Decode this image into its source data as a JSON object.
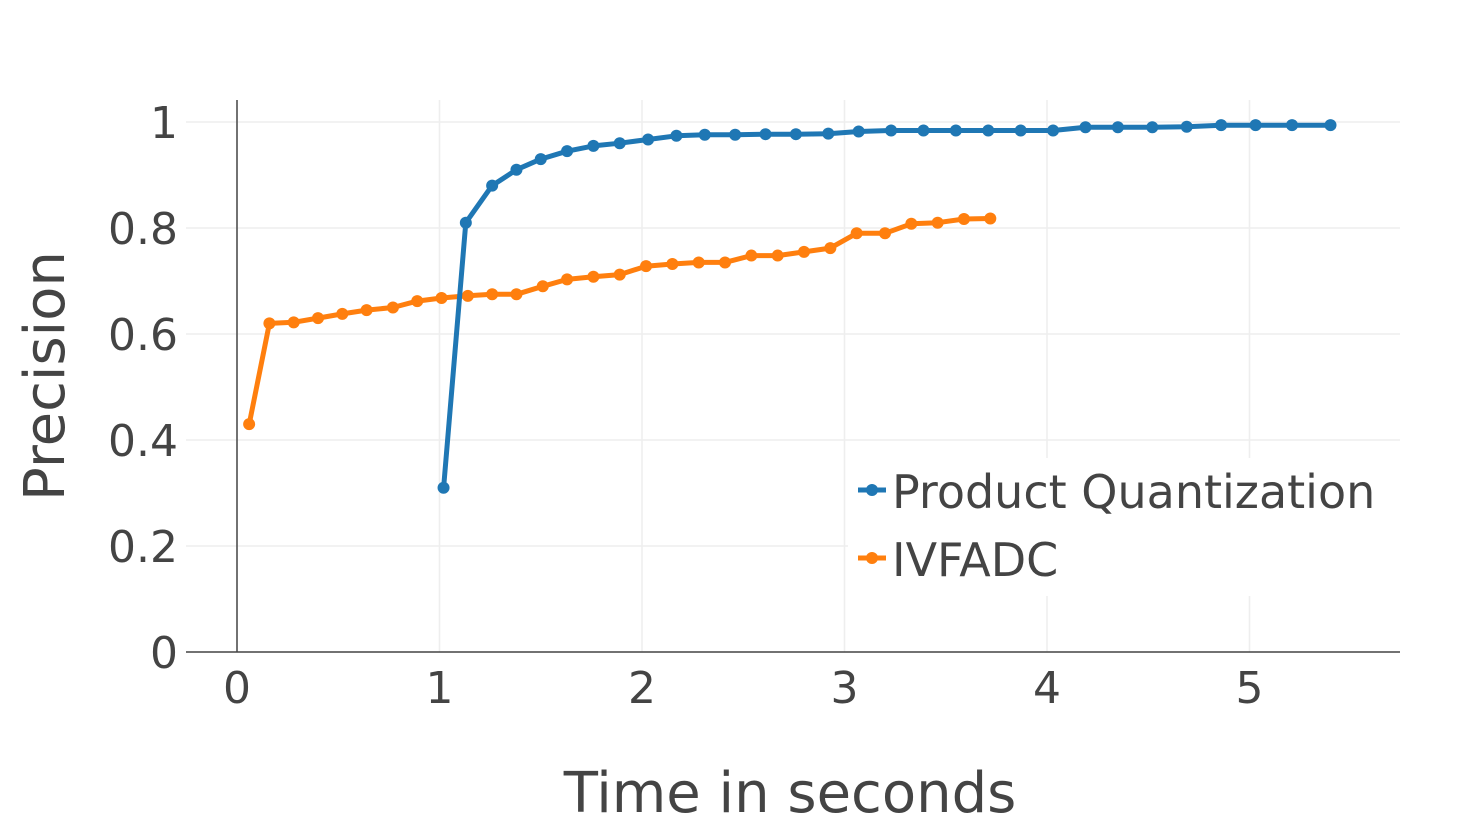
{
  "chart_data": {
    "type": "line",
    "xlabel": "Time in seconds",
    "ylabel": "Precision",
    "xlim": [
      -0.25,
      5.73
    ],
    "ylim": [
      0,
      1.04
    ],
    "x_ticks": [
      0,
      1,
      2,
      3,
      4,
      5
    ],
    "y_ticks": [
      0,
      0.2,
      0.4,
      0.6,
      0.8,
      1
    ],
    "x_tick_labels": [
      "0",
      "1",
      "2",
      "3",
      "4",
      "5"
    ],
    "y_tick_labels": [
      "0",
      "0.2",
      "0.4",
      "0.6",
      "0.8",
      "1"
    ],
    "grid": true,
    "legend_position": "bottom-right",
    "series": [
      {
        "name": "Product Quantization",
        "color": "#1f77b4",
        "x": [
          1.02,
          1.13,
          1.26,
          1.38,
          1.5,
          1.63,
          1.76,
          1.89,
          2.03,
          2.17,
          2.31,
          2.46,
          2.61,
          2.76,
          2.92,
          3.07,
          3.23,
          3.39,
          3.55,
          3.71,
          3.87,
          4.03,
          4.19,
          4.35,
          4.52,
          4.69,
          4.86,
          5.03,
          5.21,
          5.4
        ],
        "y": [
          0.31,
          0.81,
          0.88,
          0.91,
          0.93,
          0.945,
          0.955,
          0.96,
          0.967,
          0.974,
          0.976,
          0.976,
          0.977,
          0.977,
          0.978,
          0.982,
          0.984,
          0.984,
          0.984,
          0.984,
          0.984,
          0.984,
          0.99,
          0.99,
          0.99,
          0.991,
          0.994,
          0.994,
          0.994,
          0.994
        ]
      },
      {
        "name": "IVFADC",
        "color": "#ff7f0e",
        "x": [
          0.06,
          0.16,
          0.28,
          0.4,
          0.52,
          0.64,
          0.77,
          0.89,
          1.01,
          1.14,
          1.26,
          1.38,
          1.51,
          1.63,
          1.76,
          1.89,
          2.02,
          2.15,
          2.28,
          2.41,
          2.54,
          2.67,
          2.8,
          2.93,
          3.06,
          3.2,
          3.33,
          3.46,
          3.59,
          3.72
        ],
        "y": [
          0.43,
          0.62,
          0.622,
          0.63,
          0.638,
          0.645,
          0.65,
          0.662,
          0.668,
          0.672,
          0.675,
          0.675,
          0.69,
          0.703,
          0.708,
          0.712,
          0.728,
          0.732,
          0.735,
          0.735,
          0.748,
          0.748,
          0.755,
          0.762,
          0.79,
          0.79,
          0.808,
          0.81,
          0.817,
          0.818
        ]
      }
    ]
  }
}
